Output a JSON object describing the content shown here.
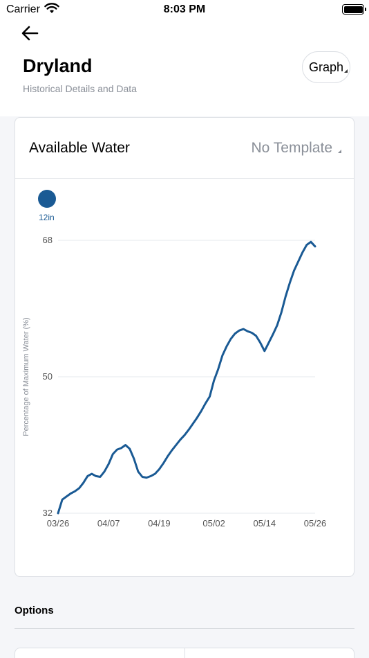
{
  "status": {
    "carrier": "Carrier",
    "time": "8:03 PM"
  },
  "header": {
    "title": "Dryland",
    "subtitle": "Historical Details and Data",
    "view_button": "Graph"
  },
  "card": {
    "title": "Available Water",
    "template_select": "No Template"
  },
  "legend": {
    "label": "12in",
    "color": "#1a5a94"
  },
  "options": {
    "title": "Options"
  },
  "chart_data": {
    "type": "line",
    "ylabel": "Percentage of Maximum Water (%)",
    "xlabel": "",
    "y_ticks": [
      32,
      50,
      68
    ],
    "ylim": [
      32,
      68
    ],
    "x_ticks": [
      "03/26",
      "04/07",
      "04/19",
      "05/02",
      "05/14",
      "05/26"
    ],
    "grid": true,
    "series": [
      {
        "name": "12in",
        "color": "#1a5a94",
        "points": [
          [
            "03/26",
            32.0
          ],
          [
            "03/27",
            33.8
          ],
          [
            "03/28",
            34.2
          ],
          [
            "03/29",
            34.6
          ],
          [
            "03/30",
            34.9
          ],
          [
            "03/31",
            35.3
          ],
          [
            "04/01",
            36.0
          ],
          [
            "04/02",
            36.9
          ],
          [
            "04/03",
            37.2
          ],
          [
            "04/04",
            36.9
          ],
          [
            "04/05",
            36.8
          ],
          [
            "04/06",
            37.5
          ],
          [
            "04/07",
            38.5
          ],
          [
            "04/08",
            39.8
          ],
          [
            "04/09",
            40.4
          ],
          [
            "04/10",
            40.6
          ],
          [
            "04/11",
            41.0
          ],
          [
            "04/12",
            40.5
          ],
          [
            "04/13",
            39.2
          ],
          [
            "04/14",
            37.5
          ],
          [
            "04/15",
            36.8
          ],
          [
            "04/16",
            36.7
          ],
          [
            "04/17",
            36.9
          ],
          [
            "04/18",
            37.2
          ],
          [
            "04/19",
            37.8
          ],
          [
            "04/20",
            38.6
          ],
          [
            "04/21",
            39.5
          ],
          [
            "04/22",
            40.3
          ],
          [
            "04/23",
            41.0
          ],
          [
            "04/24",
            41.7
          ],
          [
            "04/25",
            42.3
          ],
          [
            "04/26",
            43.0
          ],
          [
            "04/27",
            43.8
          ],
          [
            "04/28",
            44.6
          ],
          [
            "04/29",
            45.5
          ],
          [
            "04/30",
            46.5
          ],
          [
            "05/01",
            47.4
          ],
          [
            "05/02",
            49.5
          ],
          [
            "05/03",
            51.0
          ],
          [
            "05/04",
            52.8
          ],
          [
            "05/05",
            54.0
          ],
          [
            "05/06",
            55.0
          ],
          [
            "05/07",
            55.7
          ],
          [
            "05/08",
            56.1
          ],
          [
            "05/09",
            56.3
          ],
          [
            "05/10",
            56.0
          ],
          [
            "05/11",
            55.8
          ],
          [
            "05/12",
            55.4
          ],
          [
            "05/13",
            54.5
          ],
          [
            "05/14",
            53.4
          ],
          [
            "05/15",
            54.5
          ],
          [
            "05/16",
            55.6
          ],
          [
            "05/17",
            56.8
          ],
          [
            "05/18",
            58.5
          ],
          [
            "05/19",
            60.6
          ],
          [
            "05/20",
            62.4
          ],
          [
            "05/21",
            64.0
          ],
          [
            "05/22",
            65.2
          ],
          [
            "05/23",
            66.4
          ],
          [
            "05/24",
            67.4
          ],
          [
            "05/25",
            67.8
          ],
          [
            "05/26",
            67.2
          ]
        ]
      }
    ]
  }
}
